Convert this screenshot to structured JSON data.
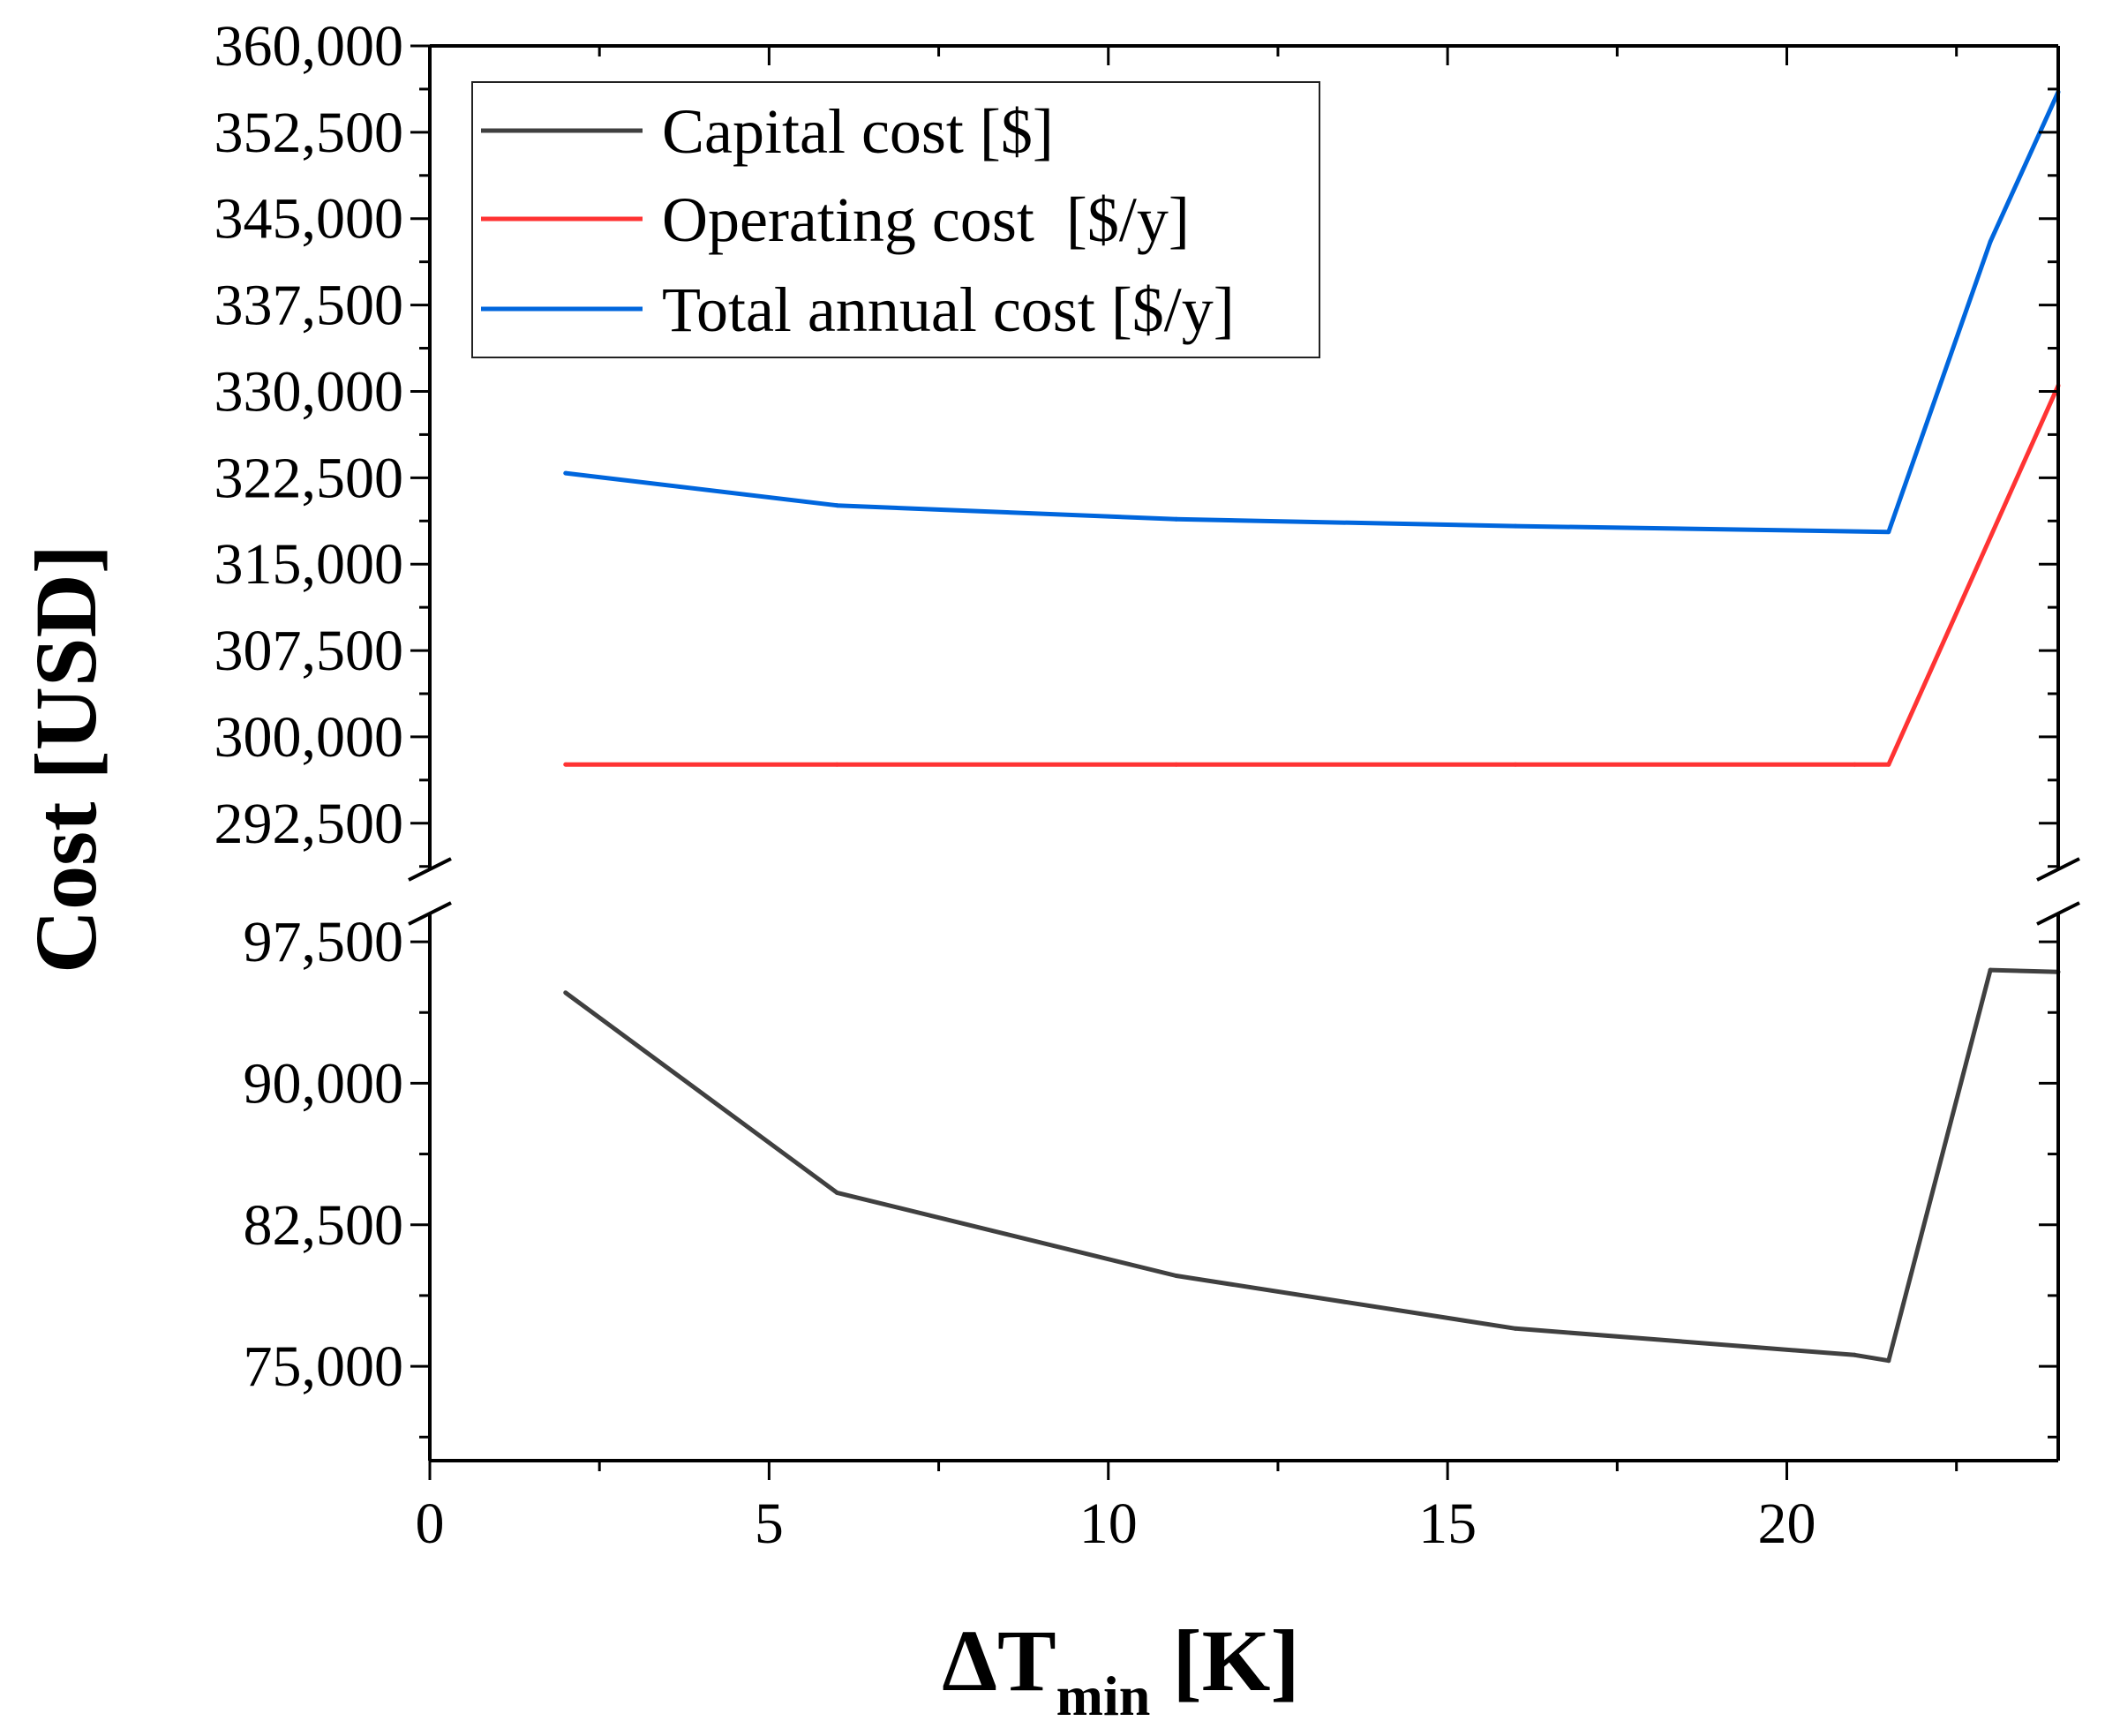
{
  "chart_data": {
    "type": "line",
    "xlabel_main": "ΔT",
    "xlabel_sub": "min",
    "xlabel_unit": " [K]",
    "ylabel": "Cost [USD]",
    "xlim": [
      0,
      24
    ],
    "x_ticks": [
      0,
      5,
      10,
      15,
      20
    ],
    "y_axis_break": true,
    "y_upper_range": [
      288500,
      360000
    ],
    "y_upper_ticks": [
      "292,500",
      "300,000",
      "307,500",
      "315,000",
      "322,500",
      "330,000",
      "337,500",
      "345,000",
      "352,500",
      "360,000"
    ],
    "y_upper_tick_values": [
      292500,
      300000,
      307500,
      315000,
      322500,
      330000,
      337500,
      345000,
      352500,
      360000
    ],
    "y_lower_range": [
      70000,
      99000
    ],
    "y_lower_ticks": [
      "75,000",
      "82,500",
      "90,000",
      "97,500"
    ],
    "y_lower_tick_values": [
      75000,
      82500,
      90000,
      97500
    ],
    "legend_position": "top-left",
    "series": [
      {
        "name": "Capital cost [$]",
        "color": "#404040",
        "segment": "lower",
        "x": [
          2,
          6,
          11,
          16,
          21,
          21.5,
          23,
          24
        ],
        "y": [
          94800,
          84200,
          79800,
          77000,
          75600,
          75300,
          96000,
          95900
        ]
      },
      {
        "name": "Operating cost  [$/y]",
        "color": "#ff3333",
        "segment": "upper",
        "x": [
          2,
          6,
          11,
          16,
          21,
          21.5,
          24
        ],
        "y": [
          297600,
          297600,
          297600,
          297600,
          297600,
          297600,
          330500
        ]
      },
      {
        "name": "Total annual cost [$/y]",
        "color": "#0066dd",
        "segment": "upper",
        "x": [
          2,
          6,
          11,
          16,
          21.5,
          23,
          24
        ],
        "y": [
          322900,
          320100,
          318900,
          318300,
          317800,
          343000,
          356000
        ]
      }
    ]
  }
}
